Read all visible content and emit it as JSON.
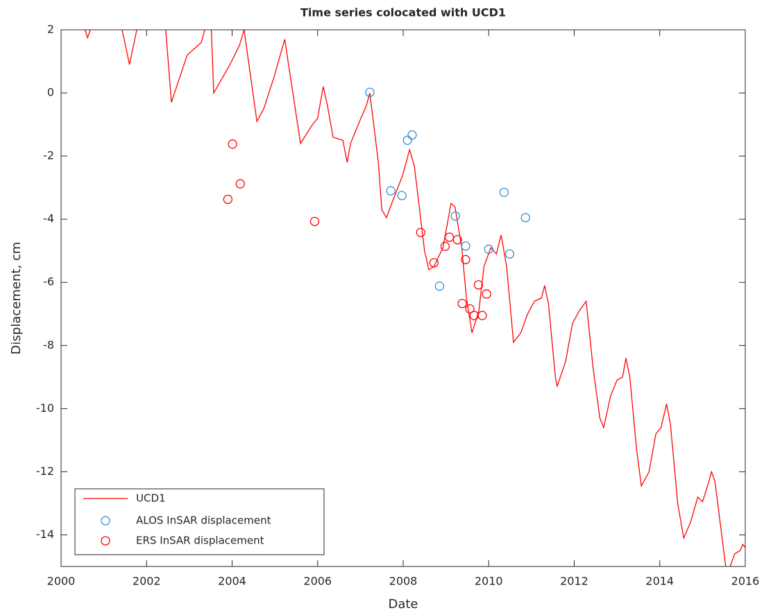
{
  "chart_data": {
    "type": "line",
    "title": "Time series colocated with UCD1",
    "xlabel": "Date",
    "ylabel": "Displacement, cm",
    "xlim": [
      2000,
      2016
    ],
    "xticks": [
      2000,
      2002,
      2004,
      2006,
      2008,
      2010,
      2012,
      2014,
      2016
    ],
    "ylim": [
      -15,
      2
    ],
    "yticks": [
      -14,
      -12,
      -10,
      -8,
      -6,
      -4,
      -2,
      0,
      2
    ],
    "legend": "southwest",
    "series": [
      {
        "name": "UCD1",
        "style": "line",
        "color": "#ff0000",
        "x": [
          2000.45,
          2000.62,
          2000.76,
          2001.35,
          2001.6,
          2001.77,
          2001.85,
          2002.42,
          2002.58,
          2002.95,
          2003.28,
          2003.4,
          2003.45,
          2003.5,
          2003.57,
          2003.93,
          2004.17,
          2004.28,
          2004.58,
          2004.74,
          2004.98,
          2005.23,
          2005.6,
          2005.88,
          2006.0,
          2006.13,
          2006.23,
          2006.36,
          2006.59,
          2006.69,
          2006.77,
          2006.98,
          2007.14,
          2007.22,
          2007.42,
          2007.5,
          2007.61,
          2007.76,
          2007.99,
          2008.15,
          2008.26,
          2008.5,
          2008.6,
          2008.72,
          2008.93,
          2009.12,
          2009.21,
          2009.37,
          2009.48,
          2009.61,
          2009.77,
          2009.89,
          2010.05,
          2010.18,
          2010.29,
          2010.42,
          2010.58,
          2010.75,
          2010.91,
          2011.07,
          2011.23,
          2011.31,
          2011.4,
          2011.56,
          2011.6,
          2011.8,
          2011.96,
          2012.12,
          2012.28,
          2012.44,
          2012.6,
          2012.69,
          2012.85,
          2013.0,
          2013.13,
          2013.21,
          2013.3,
          2013.46,
          2013.57,
          2013.75,
          2013.91,
          2014.03,
          2014.16,
          2014.25,
          2014.42,
          2014.56,
          2014.72,
          2014.89,
          2015.0,
          2015.13,
          2015.21,
          2015.29,
          2015.45,
          2015.57,
          2015.75,
          2015.88,
          2015.94,
          2016.0
        ],
        "values": [
          2.5,
          1.75,
          2.3,
          2.5,
          0.9,
          2.0,
          2.5,
          2.5,
          -0.3,
          1.2,
          1.6,
          2.2,
          2.5,
          2.5,
          0.0,
          0.85,
          1.5,
          2.0,
          -0.9,
          -0.5,
          0.5,
          1.7,
          -1.6,
          -1.0,
          -0.8,
          0.2,
          -0.4,
          -1.4,
          -1.5,
          -2.2,
          -1.6,
          -0.9,
          -0.4,
          0.0,
          -2.2,
          -3.7,
          -3.95,
          -3.4,
          -2.6,
          -1.8,
          -2.3,
          -5.0,
          -5.6,
          -5.5,
          -4.9,
          -3.5,
          -3.6,
          -4.9,
          -6.5,
          -7.6,
          -6.9,
          -5.5,
          -4.9,
          -5.1,
          -4.5,
          -5.5,
          -7.9,
          -7.6,
          -7.0,
          -6.6,
          -6.5,
          -6.1,
          -6.7,
          -9.0,
          -9.3,
          -8.5,
          -7.3,
          -6.9,
          -6.6,
          -8.7,
          -10.3,
          -10.6,
          -9.6,
          -9.1,
          -9.0,
          -8.4,
          -9.0,
          -11.3,
          -12.45,
          -12.0,
          -10.8,
          -10.6,
          -9.85,
          -10.5,
          -13.0,
          -14.1,
          -13.6,
          -12.8,
          -12.95,
          -12.4,
          -12.0,
          -12.3,
          -14.0,
          -15.3,
          -14.6,
          -14.5,
          -14.3,
          -14.4
        ]
      },
      {
        "name": "ALOS InSAR displacement",
        "style": "circle",
        "color": "#2f8fd0",
        "x": [
          2007.22,
          2007.71,
          2007.97,
          2008.1,
          2008.21,
          2008.85,
          2009.22,
          2009.46,
          2010.0,
          2010.36,
          2010.49,
          2010.86
        ],
        "values": [
          0.02,
          -3.1,
          -3.25,
          -1.5,
          -1.33,
          -6.12,
          -3.9,
          -4.85,
          -4.95,
          -3.15,
          -5.1,
          -3.95
        ]
      },
      {
        "name": "ERS InSAR displacement",
        "style": "circle",
        "color": "#ff0000",
        "x": [
          2004.01,
          2003.9,
          2004.19,
          2005.93,
          2008.41,
          2008.72,
          2008.98,
          2009.08,
          2009.27,
          2009.46,
          2009.38,
          2009.56,
          2009.66,
          2009.76,
          2009.85,
          2009.95
        ],
        "values": [
          -1.62,
          -3.37,
          -2.88,
          -4.07,
          -4.42,
          -5.38,
          -4.86,
          -4.57,
          -4.65,
          -5.28,
          -6.67,
          -6.84,
          -7.05,
          -6.08,
          -7.05,
          -6.37
        ]
      }
    ]
  }
}
